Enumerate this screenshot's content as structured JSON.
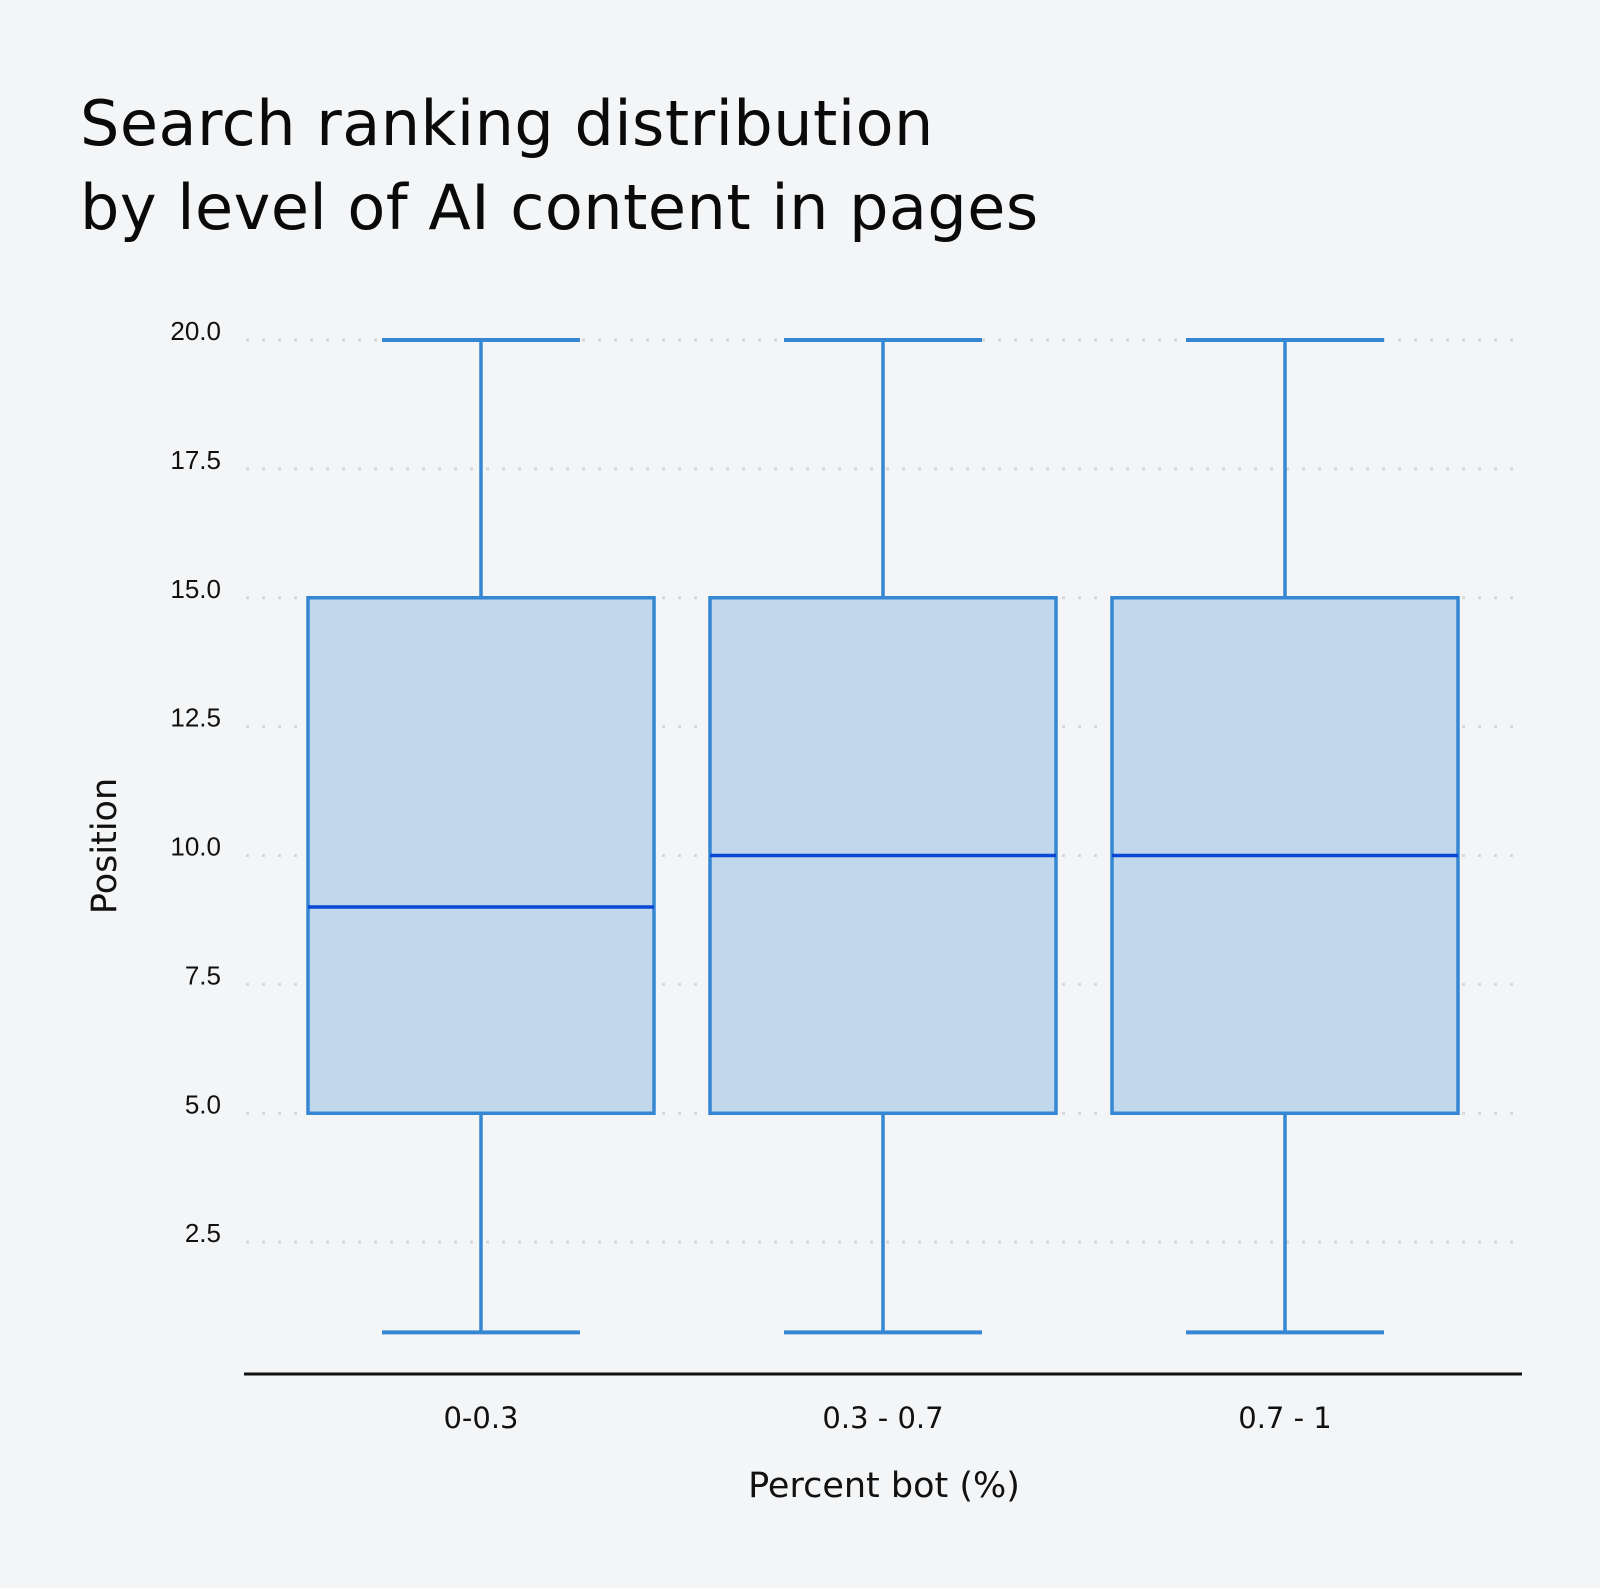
{
  "title": {
    "line1": "Search ranking distribution",
    "line2": "by level of AI content in pages"
  },
  "colors": {
    "background": "#f4f5f7",
    "box_fill": "#c1d7ec",
    "box_stroke": "#3587d4",
    "median": "#0b47d6",
    "grid": "#d8d8d8",
    "axis": "#111111"
  },
  "chart_data": {
    "type": "box",
    "title": "Search ranking distribution by level of AI content in pages",
    "xlabel": "Percent bot (%)",
    "ylabel": "Position",
    "categories": [
      "0-0.3",
      "0.3 - 0.7",
      "0.7 - 1"
    ],
    "series": [
      {
        "category": "0-0.3",
        "whisker_low": 0.75,
        "q1": 5.0,
        "median": 9.0,
        "q3": 15.0,
        "whisker_high": 20.0
      },
      {
        "category": "0.3 - 0.7",
        "whisker_low": 0.75,
        "q1": 5.0,
        "median": 10.0,
        "q3": 15.0,
        "whisker_high": 20.0
      },
      {
        "category": "0.7 - 1",
        "whisker_low": 0.75,
        "q1": 5.0,
        "median": 10.0,
        "q3": 15.0,
        "whisker_high": 20.0
      }
    ],
    "yticks": [
      "2.5",
      "5.0",
      "7.5",
      "10.0",
      "12.5",
      "15.0",
      "17.5",
      "20.0"
    ],
    "ytick_values": [
      2.5,
      5.0,
      7.5,
      10.0,
      12.5,
      15.0,
      17.5,
      20.0
    ],
    "ylim": [
      0,
      20
    ],
    "grid": "horizontal dotted",
    "legend": "none"
  }
}
